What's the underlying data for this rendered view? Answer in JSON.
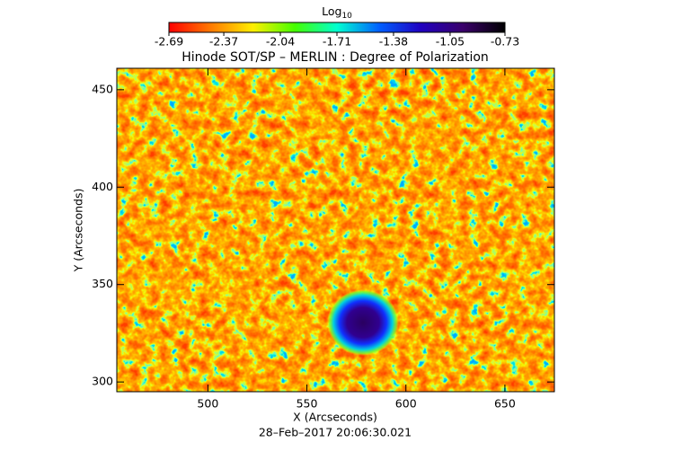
{
  "chart_data": {
    "type": "image",
    "title": "Hinode SOT/SP – MERLIN : Degree of Polarization",
    "xlabel": "X (Arcseconds)",
    "ylabel": "Y (Arcseconds)",
    "annotation": "28–Feb–2017 20:06:30.021",
    "xlim": [
      454,
      675
    ],
    "xticks": [
      500,
      550,
      600,
      650
    ],
    "ylim": [
      295,
      461
    ],
    "yticks": [
      300,
      350,
      400,
      450
    ],
    "colorbar": {
      "label": "Log",
      "label_subscript": "10",
      "lim": [
        -2.69,
        -0.73
      ],
      "ticks": [
        -2.69,
        -2.37,
        -2.04,
        -1.71,
        -1.38,
        -1.05,
        -0.73
      ],
      "colormap": [
        "#ff0000",
        "#ff7a00",
        "#ffee00",
        "#44ff00",
        "#00ffd0",
        "#0060ff",
        "#2000c0",
        "#3a006a",
        "#000000"
      ]
    }
  }
}
